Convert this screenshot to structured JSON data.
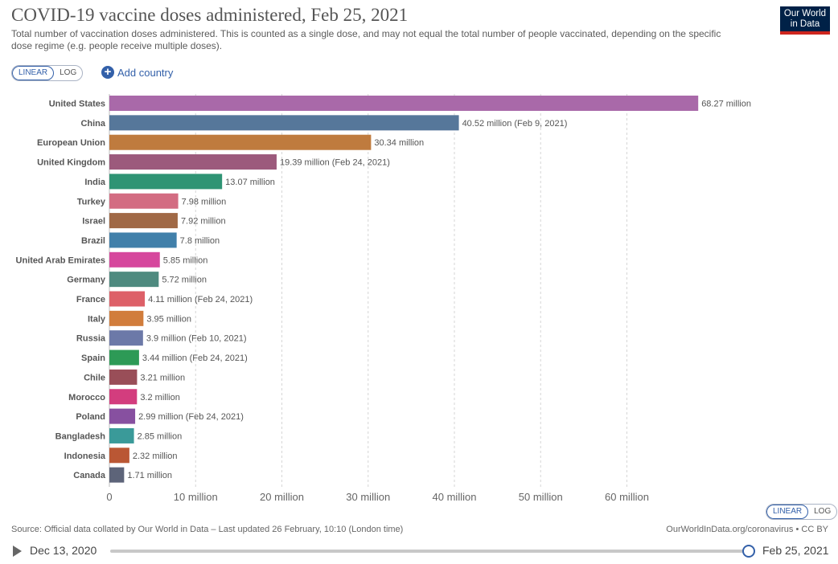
{
  "header": {
    "title": "COVID-19 vaccine doses administered, Feb 25, 2021",
    "subtitle": "Total number of vaccination doses administered. This is counted as a single dose, and may not equal the total number of people vaccinated, depending on the specific dose regime (e.g. people receive multiple doses).",
    "logo_line1": "Our World",
    "logo_line2": "in Data"
  },
  "controls": {
    "linear_label": "LINEAR",
    "log_label": "LOG",
    "add_country_label": "Add country",
    "scale_selected": "LINEAR"
  },
  "chart_data": {
    "type": "bar",
    "orientation": "horizontal",
    "xlim": [
      0,
      68.27
    ],
    "x_ticks": [
      0,
      10,
      20,
      30,
      40,
      50,
      60
    ],
    "x_tick_labels": [
      "0",
      "10 million",
      "20 million",
      "30 million",
      "40 million",
      "50 million",
      "60 million"
    ],
    "grid": "vertical dashed",
    "series": [
      {
        "categories": [
          "United States",
          "China",
          "European Union",
          "United Kingdom",
          "India",
          "Turkey",
          "Israel",
          "Brazil",
          "United Arab Emirates",
          "Germany",
          "France",
          "Italy",
          "Russia",
          "Spain",
          "Chile",
          "Morocco",
          "Poland",
          "Bangladesh",
          "Indonesia",
          "Canada"
        ],
        "values": [
          68.27,
          40.52,
          30.34,
          19.39,
          13.07,
          7.98,
          7.92,
          7.8,
          5.85,
          5.72,
          4.11,
          3.95,
          3.9,
          3.44,
          3.21,
          3.2,
          2.99,
          2.85,
          2.32,
          1.71
        ],
        "labels": [
          "68.27 million",
          "40.52 million (Feb 9, 2021)",
          "30.34 million",
          "19.39 million (Feb 24, 2021)",
          "13.07 million",
          "7.98 million",
          "7.92 million",
          "7.8 million",
          "5.85 million",
          "5.72 million",
          "4.11 million (Feb 24, 2021)",
          "3.95 million",
          "3.9 million (Feb 10, 2021)",
          "3.44 million (Feb 24, 2021)",
          "3.21 million",
          "3.2 million",
          "2.99 million (Feb 24, 2021)",
          "2.85 million",
          "2.32 million",
          "1.71 million"
        ],
        "colors": [
          "#a969a9",
          "#56779a",
          "#bf7b3e",
          "#9c5a7c",
          "#2f9474",
          "#d36c82",
          "#a06946",
          "#4180aa",
          "#d6479d",
          "#4e8a7f",
          "#dd6068",
          "#d17d3c",
          "#6c79a8",
          "#2d9a56",
          "#994e58",
          "#d33d7e",
          "#8750a0",
          "#3a9a99",
          "#ba5734",
          "#5d6479"
        ]
      }
    ]
  },
  "footer": {
    "source": "Source: Official data collated by Our World in Data – Last updated 26 February, 10:10 (London time)",
    "credit": "OurWorldInData.org/coronavirus • CC BY"
  },
  "timeline": {
    "start_label": "Dec 13, 2020",
    "end_label": "Feb 25, 2021",
    "position": 1.0
  }
}
